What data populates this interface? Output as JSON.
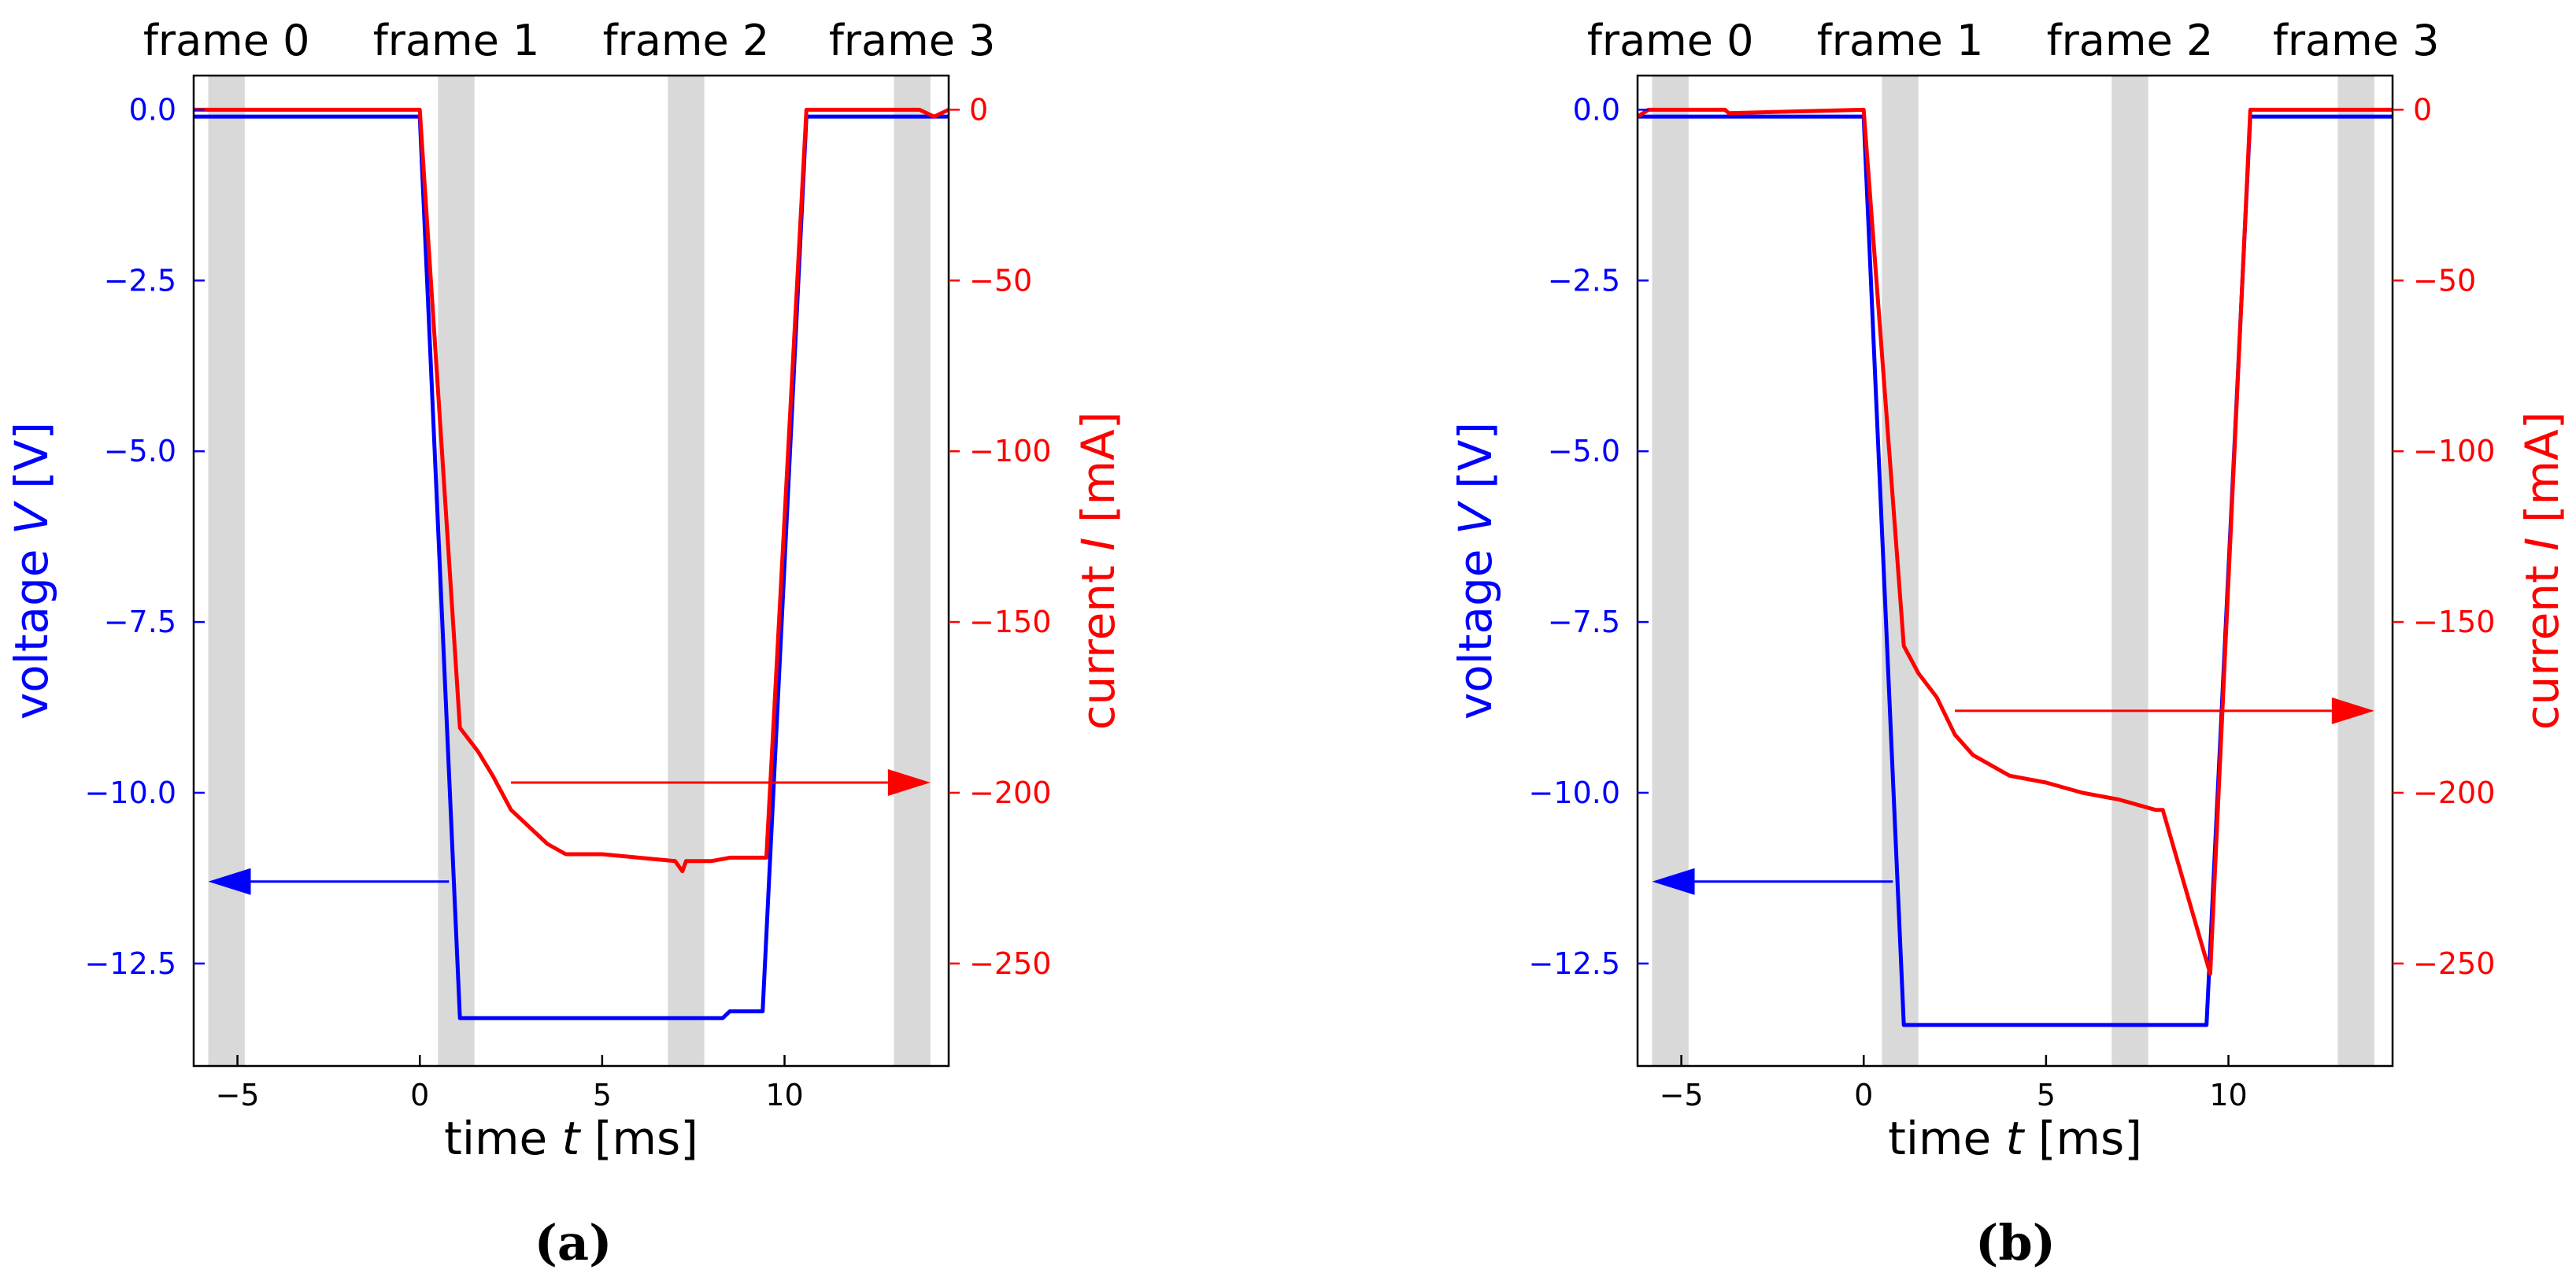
{
  "figure": {
    "panels": [
      "(a)",
      "(b)"
    ]
  },
  "chart_data": [
    {
      "type": "line",
      "caption": "(a)",
      "xlabel_prefix": "time ",
      "xlabel_var": "t",
      "xlabel_unit": " [ms]",
      "ylabel_left_prefix": "voltage ",
      "ylabel_left_var": "V",
      "ylabel_left_unit": " [V]",
      "ylabel_right_prefix": "current ",
      "ylabel_right_var": "I",
      "ylabel_right_unit": " [mA]",
      "xlim": [
        -6.2,
        14.5
      ],
      "ylim_left": [
        -14.0,
        0.5
      ],
      "ylim_right": [
        -280,
        10
      ],
      "xticks": [
        -5,
        0,
        5,
        10
      ],
      "xtick_labels": [
        "−5",
        "0",
        "5",
        "10"
      ],
      "yticks_left": [
        0.0,
        -2.5,
        -5.0,
        -7.5,
        -10.0,
        -12.5
      ],
      "ytick_labels_left": [
        "0.0",
        "−2.5",
        "−5.0",
        "−7.5",
        "−10.0",
        "−12.5"
      ],
      "yticks_right": [
        0,
        -50,
        -100,
        -150,
        -200,
        -250
      ],
      "ytick_labels_right": [
        "0",
        "−50",
        "−100",
        "−150",
        "−200",
        "−250"
      ],
      "frames": [
        {
          "label": "frame 0",
          "start": -5.8,
          "end": -4.8
        },
        {
          "label": "frame 1",
          "start": 0.5,
          "end": 1.5
        },
        {
          "label": "frame 2",
          "start": 6.8,
          "end": 7.8
        },
        {
          "label": "frame 3",
          "start": 13.0,
          "end": 14.0
        }
      ],
      "series": [
        {
          "axis": "left",
          "color": "#0000ff",
          "x": [
            -6.2,
            0.0,
            1.1,
            8.3,
            8.5,
            9.4,
            10.6,
            14.5
          ],
          "y": [
            -0.1,
            -0.1,
            -13.3,
            -13.3,
            -13.2,
            -13.2,
            -0.1,
            -0.1
          ]
        },
        {
          "axis": "right",
          "color": "#ff0000",
          "x": [
            -6.2,
            0.0,
            1.1,
            1.6,
            2.0,
            2.5,
            3.0,
            3.5,
            4.0,
            5.0,
            6.0,
            7.0,
            7.2,
            7.3,
            7.4,
            8.0,
            8.5,
            9.0,
            9.5,
            10.6,
            13.7,
            14.1,
            14.5
          ],
          "y": [
            0,
            0,
            -181,
            -188,
            -195,
            -205,
            -210,
            -215,
            -218,
            -218,
            -219,
            -220,
            -223,
            -220,
            -220,
            -220,
            -219,
            -219,
            -219,
            0,
            0,
            -2,
            0
          ]
        }
      ],
      "arrows": [
        {
          "direction": "left",
          "color": "#0000ff",
          "from_x": 0.8,
          "to_x": -5.8,
          "y": -11.3,
          "axis": "left"
        },
        {
          "direction": "right",
          "color": "#ff0000",
          "from_x": 2.5,
          "to_x": 14.0,
          "y": -197,
          "axis": "right"
        }
      ]
    },
    {
      "type": "line",
      "caption": "(b)",
      "xlabel_prefix": "time ",
      "xlabel_var": "t",
      "xlabel_unit": " [ms]",
      "ylabel_left_prefix": "voltage ",
      "ylabel_left_var": "V",
      "ylabel_left_unit": " [V]",
      "ylabel_right_prefix": "current ",
      "ylabel_right_var": "I",
      "ylabel_right_unit": " [mA]",
      "xlim": [
        -6.2,
        14.5
      ],
      "ylim_left": [
        -14.0,
        0.5
      ],
      "ylim_right": [
        -280,
        10
      ],
      "xticks": [
        -5,
        0,
        5,
        10
      ],
      "xtick_labels": [
        "−5",
        "0",
        "5",
        "10"
      ],
      "yticks_left": [
        0.0,
        -2.5,
        -5.0,
        -7.5,
        -10.0,
        -12.5
      ],
      "ytick_labels_left": [
        "0.0",
        "−2.5",
        "−5.0",
        "−7.5",
        "−10.0",
        "−12.5"
      ],
      "yticks_right": [
        0,
        -50,
        -100,
        -150,
        -200,
        -250
      ],
      "ytick_labels_right": [
        "0",
        "−50",
        "−100",
        "−150",
        "−200",
        "−250"
      ],
      "frames": [
        {
          "label": "frame 0",
          "start": -5.8,
          "end": -4.8
        },
        {
          "label": "frame 1",
          "start": 0.5,
          "end": 1.5
        },
        {
          "label": "frame 2",
          "start": 6.8,
          "end": 7.8
        },
        {
          "label": "frame 3",
          "start": 13.0,
          "end": 14.0
        }
      ],
      "series": [
        {
          "axis": "left",
          "color": "#0000ff",
          "x": [
            -6.2,
            0.0,
            1.1,
            9.4,
            10.6,
            14.5
          ],
          "y": [
            -0.1,
            -0.1,
            -13.4,
            -13.4,
            -0.1,
            -0.1
          ]
        },
        {
          "axis": "right",
          "color": "#ff0000",
          "x": [
            -6.2,
            -5.9,
            -3.8,
            -3.7,
            0.0,
            1.1,
            1.5,
            2.0,
            2.5,
            3.0,
            4.0,
            5.0,
            6.0,
            7.0,
            8.0,
            8.2,
            9.5,
            10.6,
            14.5
          ],
          "y": [
            -2,
            0,
            0,
            -1,
            0,
            -157,
            -165,
            -172,
            -183,
            -189,
            -195,
            -197,
            -200,
            -202,
            -205,
            -205,
            -253,
            0,
            0
          ]
        }
      ],
      "arrows": [
        {
          "direction": "left",
          "color": "#0000ff",
          "from_x": 0.8,
          "to_x": -5.8,
          "y": -11.3,
          "axis": "left"
        },
        {
          "direction": "right",
          "color": "#ff0000",
          "from_x": 2.5,
          "to_x": 14.0,
          "y": -176,
          "axis": "right"
        }
      ]
    }
  ]
}
